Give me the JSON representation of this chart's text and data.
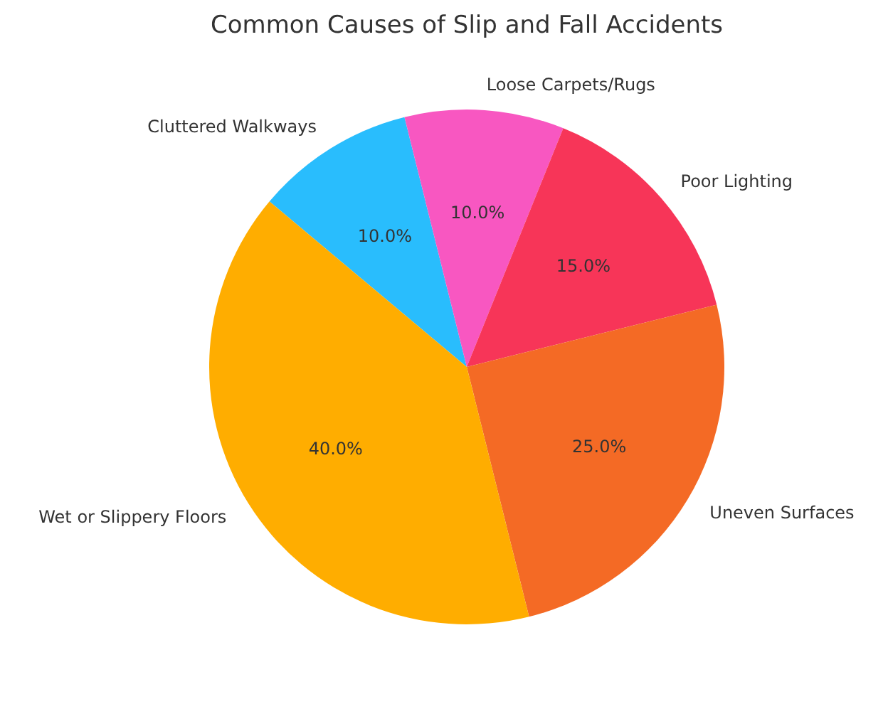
{
  "chart_data": {
    "type": "pie",
    "title": "Common Causes of Slip and Fall Accidents",
    "categories": [
      "Wet or Slippery Floors",
      "Uneven Surfaces",
      "Poor Lighting",
      "Loose Carpets/Rugs",
      "Cluttered Walkways"
    ],
    "values": [
      40,
      25,
      15,
      10,
      10
    ],
    "colors": [
      "#ffad00",
      "#f46a25",
      "#f73558",
      "#f857c1",
      "#29bdfd"
    ],
    "value_labels": [
      "40.0%",
      "25.0%",
      "15.0%",
      "10.0%",
      "10.0%"
    ]
  }
}
